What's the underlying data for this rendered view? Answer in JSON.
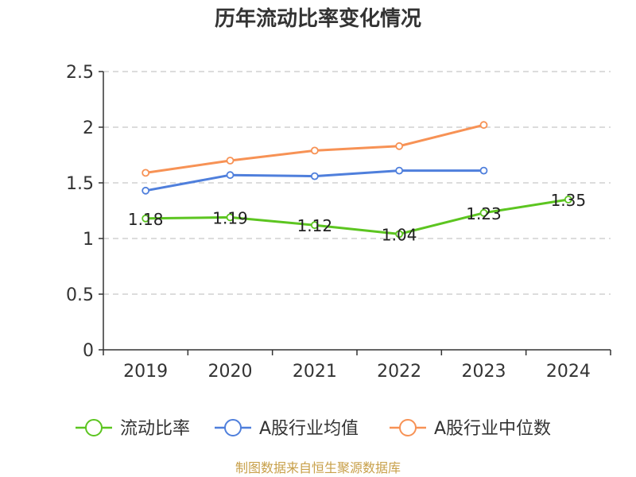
{
  "chart_data": {
    "type": "line",
    "title": "历年流动比率变化情况",
    "xlabel": "",
    "ylabel": "",
    "categories": [
      "2019",
      "2020",
      "2021",
      "2022",
      "2023",
      "2024"
    ],
    "ylim": [
      0,
      2.5
    ],
    "yticks": [
      "0",
      "0.5",
      "1",
      "1.5",
      "2",
      "2.5"
    ],
    "ytick_values": [
      0,
      0.5,
      1,
      1.5,
      2,
      2.5
    ],
    "grid": true,
    "legend_position": "bottom",
    "series": [
      {
        "name": "流动比率",
        "color": "#5cc520",
        "values": [
          1.18,
          1.19,
          1.12,
          1.04,
          1.23,
          1.35
        ],
        "labels": [
          "1.18",
          "1.19",
          "1.12",
          "1.04",
          "1.23",
          "1.35"
        ],
        "show_labels": true
      },
      {
        "name": "A股行业均值",
        "color": "#4f7fdc",
        "values": [
          1.43,
          1.57,
          1.56,
          1.61,
          1.61,
          null
        ],
        "show_labels": false
      },
      {
        "name": "A股行业中位数",
        "color": "#f79255",
        "values": [
          1.59,
          1.7,
          1.79,
          1.83,
          2.02,
          null
        ],
        "show_labels": false
      }
    ]
  },
  "source": "制图数据来自恒生聚源数据库"
}
